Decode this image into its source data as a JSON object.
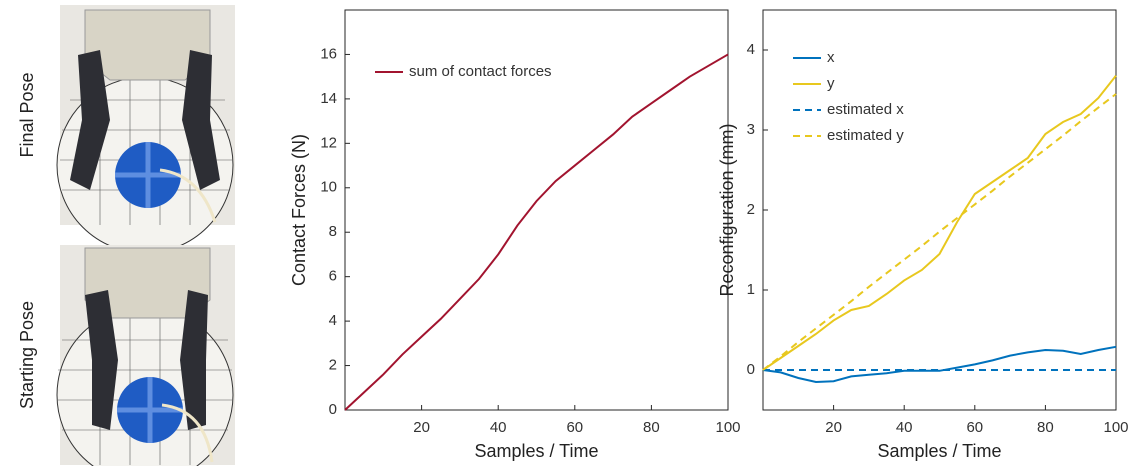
{
  "panels": {
    "photos": [
      {
        "label": "Final Pose"
      },
      {
        "label": "Starting Pose"
      }
    ]
  },
  "chart_data": [
    {
      "type": "line",
      "xlabel": "Samples / Time",
      "ylabel": "Contact Forces (N)",
      "x": [
        0,
        5,
        10,
        15,
        20,
        25,
        30,
        35,
        40,
        45,
        50,
        55,
        60,
        65,
        70,
        75,
        80,
        85,
        90,
        95,
        100
      ],
      "series": [
        {
          "name": "sum of contact forces",
          "color": "#a2142f",
          "dashed": false,
          "values": [
            0,
            0.8,
            1.6,
            2.5,
            3.3,
            4.1,
            5.0,
            5.9,
            7.0,
            8.3,
            9.4,
            10.3,
            11.0,
            11.7,
            12.4,
            13.2,
            13.8,
            14.4,
            15.0,
            15.5,
            16.0
          ]
        }
      ],
      "xlim": [
        0,
        100
      ],
      "xticks": [
        20,
        40,
        60,
        80,
        100
      ],
      "ylim": [
        0,
        18
      ],
      "yticks": [
        0,
        2,
        4,
        6,
        8,
        10,
        12,
        14,
        16
      ],
      "legend": "upper-left"
    },
    {
      "type": "line",
      "xlabel": "Samples / Time",
      "ylabel": "Reconfiguration (mm)",
      "x": [
        0,
        5,
        10,
        15,
        20,
        25,
        30,
        35,
        40,
        45,
        50,
        55,
        60,
        65,
        70,
        75,
        80,
        85,
        90,
        95,
        100
      ],
      "series": [
        {
          "name": "x",
          "color": "#0072bd",
          "dashed": false,
          "values": [
            0,
            -0.03,
            -0.1,
            -0.15,
            -0.14,
            -0.08,
            -0.06,
            -0.04,
            -0.01,
            -0.01,
            -0.01,
            0.03,
            0.07,
            0.12,
            0.18,
            0.22,
            0.25,
            0.24,
            0.2,
            0.25,
            0.29
          ]
        },
        {
          "name": "y",
          "color": "#e8c81e",
          "dashed": false,
          "values": [
            0,
            0.15,
            0.3,
            0.45,
            0.62,
            0.75,
            0.8,
            0.95,
            1.12,
            1.25,
            1.45,
            1.85,
            2.2,
            2.35,
            2.5,
            2.65,
            2.95,
            3.1,
            3.2,
            3.4,
            3.68
          ]
        },
        {
          "name": "estimated x",
          "color": "#0072bd",
          "dashed": true,
          "values": [
            0,
            0,
            0,
            0,
            0,
            0,
            0,
            0,
            0,
            0,
            0,
            0,
            0,
            0,
            0,
            0,
            0,
            0,
            0,
            0,
            0
          ]
        },
        {
          "name": "estimated y",
          "color": "#e8c81e",
          "dashed": true,
          "values": [
            0,
            0.17,
            0.35,
            0.52,
            0.69,
            0.86,
            1.04,
            1.21,
            1.38,
            1.55,
            1.73,
            1.9,
            2.07,
            2.24,
            2.42,
            2.59,
            2.76,
            2.93,
            3.11,
            3.28,
            3.45
          ]
        }
      ],
      "xlim": [
        0,
        100
      ],
      "xticks": [
        20,
        40,
        60,
        80,
        100
      ],
      "ylim": [
        -0.5,
        4.5
      ],
      "yticks": [
        0,
        1,
        2,
        3,
        4
      ],
      "legend": "upper-left"
    }
  ]
}
